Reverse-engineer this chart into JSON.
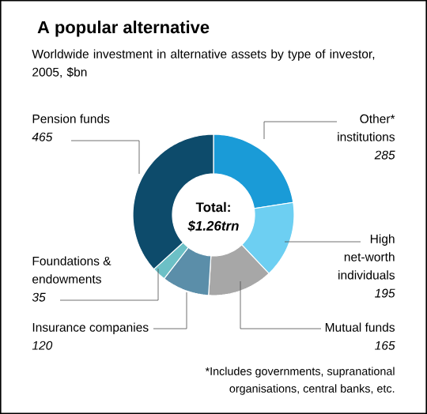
{
  "chart_data": {
    "type": "donut",
    "title": "A popular alternative",
    "subtitle": "Worldwide investment in alternative assets by type of investor, 2005, $bn",
    "categories": [
      "Other* institutions",
      "High net-worth individuals",
      "Mutual funds",
      "Insurance companies",
      "Foundations & endowments",
      "Pension funds"
    ],
    "values": [
      285,
      195,
      165,
      120,
      35,
      465
    ],
    "colors": [
      "#1a9bd7",
      "#6dcff2",
      "#a7a7a7",
      "#5b8ea9",
      "#6cc0c6",
      "#0d4b6b"
    ],
    "data_labels": true,
    "annotations": [
      "Total:",
      "$1.26trn",
      "*Includes governments, supranational organisations, central banks, etc."
    ]
  }
}
